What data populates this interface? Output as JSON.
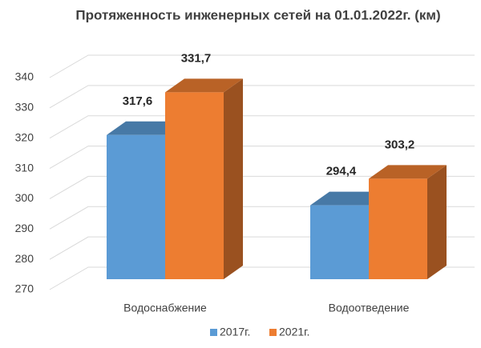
{
  "chart_data": {
    "type": "bar3d",
    "title": "Протяженность инженерных сетей на 01.01.2022г. (км)",
    "categories": [
      "Водоснабжение",
      "Водоотведение"
    ],
    "series": [
      {
        "name": "2017г.",
        "color": "#5b9bd5",
        "values": [
          317.6,
          294.4
        ],
        "value_labels": [
          "317,6",
          "294,4"
        ]
      },
      {
        "name": "2021г.",
        "color": "#ed7d31",
        "values": [
          331.7,
          303.2
        ],
        "value_labels": [
          "331,7",
          "303,2"
        ]
      }
    ],
    "ylim": [
      270,
      340
    ],
    "yticks": [
      270,
      280,
      290,
      300,
      310,
      320,
      330,
      340
    ],
    "grid": true,
    "legend": "bottom"
  }
}
